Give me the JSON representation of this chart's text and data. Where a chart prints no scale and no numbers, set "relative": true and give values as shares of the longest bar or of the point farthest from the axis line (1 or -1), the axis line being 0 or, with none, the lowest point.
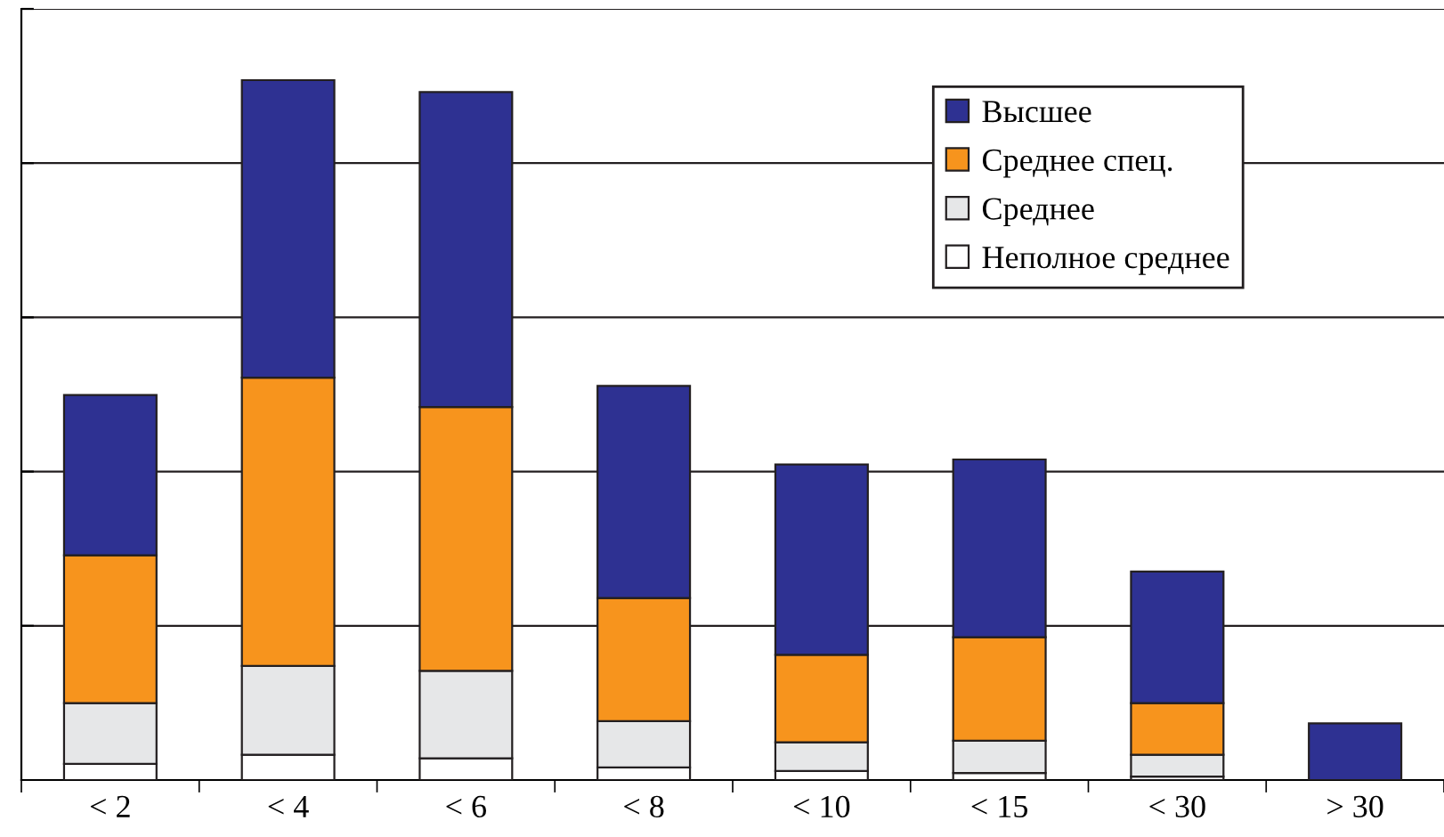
{
  "chart_data": {
    "type": "bar",
    "stacked": true,
    "relative": true,
    "grid": "y",
    "legend": "top right",
    "categories": [
      "< 2",
      "< 4",
      "< 6",
      "< 8",
      "< 10",
      "< 15",
      "< 30",
      "> 30"
    ],
    "series": [
      {
        "name": "Неполное среднее",
        "color": "#ffffff",
        "values": [
          0.023,
          0.036,
          0.031,
          0.018,
          0.013,
          0.01,
          0.005,
          0
        ]
      },
      {
        "name": "Среднее",
        "color": "#e6e7e8",
        "values": [
          0.087,
          0.127,
          0.125,
          0.066,
          0.041,
          0.046,
          0.031,
          0
        ]
      },
      {
        "name": "Среднее спец.",
        "color": "#f7941d",
        "values": [
          0.211,
          0.412,
          0.377,
          0.176,
          0.125,
          0.148,
          0.074,
          0
        ]
      },
      {
        "name": "Высшее",
        "color": "#2e3192",
        "values": [
          0.229,
          0.425,
          0.45,
          0.303,
          0.272,
          0.254,
          0.188,
          0.081
        ]
      }
    ]
  }
}
